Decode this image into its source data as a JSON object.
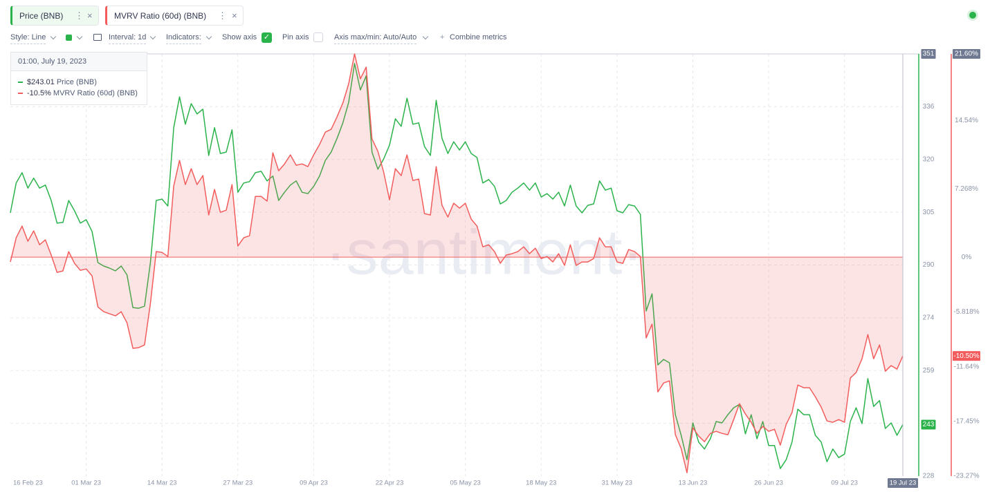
{
  "toolbar": {
    "controls": [
      "Style: Line",
      "Interval: 1d",
      "Indicators:",
      "Show axis",
      "Pin axis",
      "Axis max/min: Auto/Auto",
      "Combine metrics"
    ]
  },
  "tooltip": {
    "date": "01:00, July 19, 2023",
    "value_labels": [
      "$243.01",
      "-10.5%"
    ]
  },
  "chart_data": {
    "type": "line",
    "watermark": "·santiment·",
    "x": [
      "2023-02-16",
      "2023-02-17",
      "2023-02-18",
      "2023-02-19",
      "2023-02-20",
      "2023-02-21",
      "2023-02-22",
      "2023-02-23",
      "2023-02-24",
      "2023-02-25",
      "2023-02-26",
      "2023-02-27",
      "2023-02-28",
      "2023-03-01",
      "2023-03-02",
      "2023-03-03",
      "2023-03-04",
      "2023-03-05",
      "2023-03-06",
      "2023-03-07",
      "2023-03-08",
      "2023-03-09",
      "2023-03-10",
      "2023-03-11",
      "2023-03-12",
      "2023-03-13",
      "2023-03-14",
      "2023-03-15",
      "2023-03-16",
      "2023-03-17",
      "2023-03-18",
      "2023-03-19",
      "2023-03-20",
      "2023-03-21",
      "2023-03-22",
      "2023-03-23",
      "2023-03-24",
      "2023-03-25",
      "2023-03-26",
      "2023-03-27",
      "2023-03-28",
      "2023-03-29",
      "2023-03-30",
      "2023-03-31",
      "2023-04-01",
      "2023-04-02",
      "2023-04-03",
      "2023-04-04",
      "2023-04-05",
      "2023-04-06",
      "2023-04-07",
      "2023-04-08",
      "2023-04-09",
      "2023-04-10",
      "2023-04-11",
      "2023-04-12",
      "2023-04-13",
      "2023-04-14",
      "2023-04-15",
      "2023-04-16",
      "2023-04-17",
      "2023-04-18",
      "2023-04-19",
      "2023-04-20",
      "2023-04-21",
      "2023-04-22",
      "2023-04-23",
      "2023-04-24",
      "2023-04-25",
      "2023-04-26",
      "2023-04-27",
      "2023-04-28",
      "2023-04-29",
      "2023-04-30",
      "2023-05-01",
      "2023-05-02",
      "2023-05-03",
      "2023-05-04",
      "2023-05-05",
      "2023-05-06",
      "2023-05-07",
      "2023-05-08",
      "2023-05-09",
      "2023-05-10",
      "2023-05-11",
      "2023-05-12",
      "2023-05-13",
      "2023-05-14",
      "2023-05-15",
      "2023-05-16",
      "2023-05-17",
      "2023-05-18",
      "2023-05-19",
      "2023-05-20",
      "2023-05-21",
      "2023-05-22",
      "2023-05-23",
      "2023-05-24",
      "2023-05-25",
      "2023-05-26",
      "2023-05-27",
      "2023-05-28",
      "2023-05-29",
      "2023-05-30",
      "2023-05-31",
      "2023-06-01",
      "2023-06-02",
      "2023-06-03",
      "2023-06-04",
      "2023-06-05",
      "2023-06-06",
      "2023-06-07",
      "2023-06-08",
      "2023-06-09",
      "2023-06-10",
      "2023-06-11",
      "2023-06-12",
      "2023-06-13",
      "2023-06-14",
      "2023-06-15",
      "2023-06-16",
      "2023-06-17",
      "2023-06-18",
      "2023-06-19",
      "2023-06-20",
      "2023-06-21",
      "2023-06-22",
      "2023-06-23",
      "2023-06-24",
      "2023-06-25",
      "2023-06-26",
      "2023-06-27",
      "2023-06-28",
      "2023-06-29",
      "2023-06-30",
      "2023-07-01",
      "2023-07-02",
      "2023-07-03",
      "2023-07-04",
      "2023-07-05",
      "2023-07-06",
      "2023-07-07",
      "2023-07-08",
      "2023-07-09",
      "2023-07-10",
      "2023-07-11",
      "2023-07-12",
      "2023-07-13",
      "2023-07-14",
      "2023-07-15",
      "2023-07-16",
      "2023-07-17",
      "2023-07-18",
      "2023-07-19"
    ],
    "xlim": [
      "2023-02-16",
      "2023-07-19"
    ],
    "xticks": [
      {
        "value": "2023-02-16",
        "label": "16 Feb 23"
      },
      {
        "value": "2023-03-01",
        "label": "01 Mar 23"
      },
      {
        "value": "2023-03-14",
        "label": "14 Mar 23"
      },
      {
        "value": "2023-03-27",
        "label": "27 Mar 23"
      },
      {
        "value": "2023-04-09",
        "label": "09 Apr 23"
      },
      {
        "value": "2023-04-22",
        "label": "22 Apr 23"
      },
      {
        "value": "2023-05-05",
        "label": "05 May 23"
      },
      {
        "value": "2023-05-18",
        "label": "18 May 23"
      },
      {
        "value": "2023-05-31",
        "label": "31 May 23"
      },
      {
        "value": "2023-06-13",
        "label": "13 Jun 23"
      },
      {
        "value": "2023-06-26",
        "label": "26 Jun 23"
      },
      {
        "value": "2023-07-09",
        "label": "09 Jul 23"
      },
      {
        "value": "2023-07-19",
        "label": "19 Jul 23"
      }
    ],
    "ylim": [
      228,
      351
    ],
    "yticks": [
      351,
      {
        "value": 335.625,
        "label": "336"
      },
      {
        "value": 320.25,
        "label": "320"
      },
      {
        "value": 304.875,
        "label": "305"
      },
      {
        "value": 289.5,
        "label": "290"
      },
      {
        "value": 274.125,
        "label": "274"
      },
      {
        "value": 258.75,
        "label": "259"
      },
      {
        "value": 243.375,
        "label": "243"
      },
      228
    ],
    "y2lim": [
      -23.27,
      21.6
    ],
    "y2ticks": [
      {
        "value": 21.6,
        "label": "21.60%"
      },
      {
        "value": 14.54,
        "label": "14.54%"
      },
      {
        "value": 7.268,
        "label": "7.268%"
      },
      {
        "value": 0,
        "label": "0%"
      },
      {
        "value": -5.818,
        "label": "-5.818%"
      },
      {
        "value": -11.64,
        "label": "-11.64%"
      },
      {
        "value": -17.45,
        "label": "-17.45%"
      },
      {
        "value": -23.27,
        "label": "-23.27%"
      }
    ],
    "grid": true,
    "series": [
      {
        "name": "Price (BNB)",
        "color": "#2bb34b",
        "last_value_label": "243",
        "values": [
          304.7,
          313.4,
          316.4,
          311.9,
          314.8,
          311.9,
          312.8,
          308.3,
          301.7,
          301.9,
          308.3,
          305.3,
          301.7,
          302.7,
          299.3,
          290.2,
          289.2,
          288.6,
          287.8,
          289.2,
          286.6,
          277.1,
          276.9,
          277.5,
          290.2,
          308.3,
          308.7,
          306.7,
          329.5,
          338.5,
          330.5,
          336.5,
          333.5,
          334.9,
          321.4,
          329.5,
          322.0,
          322.4,
          328.9,
          310.7,
          313.4,
          313.8,
          316.4,
          316.8,
          314.0,
          315.4,
          308.3,
          310.7,
          312.8,
          314.0,
          310.7,
          310.3,
          312.4,
          315.4,
          320.0,
          322.4,
          326.4,
          330.9,
          336.9,
          348.2,
          340.5,
          344.6,
          322.4,
          317.4,
          320.4,
          324.4,
          332.1,
          329.9,
          338.1,
          330.5,
          330.9,
          324.0,
          321.4,
          337.5,
          326.4,
          322.0,
          325.4,
          323.0,
          325.4,
          322.0,
          320.8,
          313.4,
          314.4,
          312.4,
          307.3,
          308.3,
          310.7,
          311.9,
          313.4,
          311.3,
          313.4,
          309.3,
          310.3,
          308.7,
          310.7,
          306.7,
          312.8,
          306.7,
          304.7,
          306.9,
          307.3,
          314.0,
          311.3,
          311.9,
          305.3,
          304.7,
          307.1,
          306.7,
          304.3,
          276.1,
          281.1,
          260.4,
          262.0,
          261.0,
          245.9,
          239.9,
          232.8,
          243.5,
          237.9,
          235.9,
          238.9,
          243.9,
          243.5,
          245.9,
          247.9,
          248.9,
          240.3,
          245.9,
          238.9,
          243.9,
          236.9,
          236.9,
          230.2,
          232.8,
          237.9,
          247.5,
          245.9,
          245.9,
          239.9,
          237.9,
          232.2,
          235.9,
          233.4,
          234.4,
          243.9,
          247.9,
          243.3,
          256.4,
          248.3,
          250.0,
          241.9,
          243.5,
          239.9,
          243.01
        ]
      },
      {
        "name": "MVRV Ratio (60d) (BNB)",
        "color": "#f25c5c",
        "axis": "y2",
        "area": true,
        "last_value_label": "-10.50%",
        "values": [
          -0.51,
          2.06,
          3.3,
          1.69,
          2.79,
          1.32,
          1.84,
          0.22,
          -1.62,
          -1.47,
          0.59,
          -0.66,
          -1.4,
          -1.25,
          -1.98,
          -5.29,
          -5.8,
          -6.02,
          -6.24,
          -5.8,
          -6.98,
          -9.69,
          -9.62,
          -9.33,
          -4.92,
          0.59,
          0.51,
          0.07,
          7.56,
          10.28,
          7.71,
          9.4,
          7.71,
          8.67,
          4.48,
          7.2,
          4.77,
          4.99,
          7.71,
          1.18,
          2.06,
          2.28,
          6.46,
          6.46,
          5.95,
          11.09,
          9.18,
          9.91,
          10.87,
          9.77,
          9.91,
          9.62,
          10.87,
          11.97,
          13.29,
          13.59,
          14.91,
          16.38,
          18.43,
          21.6,
          18.95,
          20.2,
          12.56,
          11.24,
          9.03,
          6.1,
          9.4,
          8.67,
          10.87,
          8.15,
          8.3,
          4.63,
          4.48,
          9.62,
          5.51,
          4.26,
          5.73,
          5.21,
          5.73,
          4.04,
          3.3,
          1.1,
          1.32,
          0.59,
          -0.66,
          0.22,
          0.37,
          0.59,
          1.1,
          0.37,
          0.95,
          -0.15,
          0.07,
          -0.51,
          0.37,
          -0.88,
          1.32,
          -0.88,
          -0.51,
          -0.51,
          -0.15,
          2.06,
          1.1,
          1.1,
          -0.51,
          -0.66,
          0.81,
          0.59,
          0.07,
          -8.59,
          -7.12,
          -14.32,
          -13.37,
          -13.15,
          -18.87,
          -20.34,
          -22.91,
          -18.14,
          -19.02,
          -19.61,
          -18.73,
          -18.51,
          -18.73,
          -18.87,
          -17.26,
          -15.57,
          -16.67,
          -17.55,
          -18.73,
          -17.99,
          -18.51,
          -18.29,
          -19.98,
          -17.77,
          -16.52,
          -13.59,
          -13.88,
          -13.88,
          -14.83,
          -15.94,
          -17.41,
          -17.55,
          -17.26,
          -17.55,
          -12.85,
          -12.26,
          -10.8,
          -8.23,
          -10.8,
          -9.33,
          -12.12,
          -11.53,
          -11.9,
          -10.5
        ]
      }
    ]
  }
}
